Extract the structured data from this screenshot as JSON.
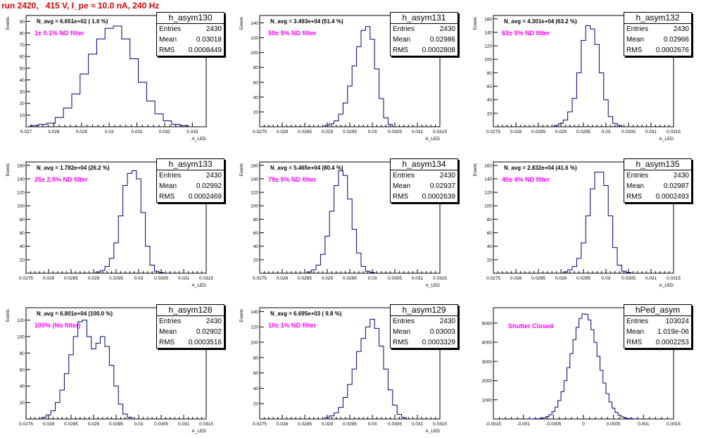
{
  "header": {
    "run_title": "run 2420,   415 V, I_pe ≈ 10.0 nA, 240 Hz"
  },
  "stats_labels": {
    "entries": "Entries",
    "mean": "Mean",
    "rms": "RMS"
  },
  "colors": {
    "histogram": "#00007f",
    "title": "#e00000",
    "annotation": "#ff00ff"
  },
  "chart_data": [
    {
      "type": "bar",
      "name": "h_asym130",
      "entries": "2430",
      "mean": "0.03018",
      "rms": "0.0008449",
      "navg": "N_avg = 6.651e+02 ( 1.0 %)",
      "filter": "1± 0.1% ND filter",
      "ylabel": "Events",
      "xlabel": "A_LED",
      "xlim": [
        0.027,
        0.0335
      ],
      "ylim": [
        0,
        95
      ],
      "xticks": [
        0.027,
        0.028,
        0.029,
        0.03,
        0.031,
        0.032,
        0.033
      ],
      "xtick_labels": [
        "0.027",
        "0.028",
        "0.029",
        "0.03",
        "0.031",
        "0.032",
        "0.033"
      ],
      "yticks": [
        10,
        20,
        30,
        40,
        50,
        60,
        70,
        80,
        90
      ],
      "yticks_labels": [
        "10",
        "20",
        "30",
        "40",
        "50",
        "60",
        "70",
        "80",
        "90"
      ],
      "hist": {
        "bins": [
          0.0273,
          0.0276,
          0.0279,
          0.0282,
          0.0285,
          0.0288,
          0.0291,
          0.0294,
          0.0297,
          0.03,
          0.0303,
          0.0306,
          0.0309,
          0.0312,
          0.0315,
          0.0318,
          0.0321,
          0.0324,
          0.0327
        ],
        "counts": [
          1,
          2,
          3,
          8,
          16,
          28,
          45,
          62,
          75,
          84,
          86,
          75,
          58,
          38,
          22,
          11,
          5,
          2,
          1
        ]
      }
    },
    {
      "type": "bar",
      "name": "h_asym131",
      "entries": "2430",
      "mean": "0.02986",
      "rms": "0.0002808",
      "navg": "N_avg = 3.493e+04 (51.4 %)",
      "filter": "50± 5% ND filter",
      "ylabel": "Events",
      "xlabel": "A_LED",
      "xlim": [
        0.0275,
        0.0315
      ],
      "ylim": [
        0,
        150
      ],
      "xticks": [
        0.0275,
        0.028,
        0.0285,
        0.029,
        0.0295,
        0.03,
        0.0305,
        0.031,
        0.0315
      ],
      "xtick_labels": [
        "0.0275",
        "0.028",
        "0.0285",
        "0.029",
        "0.0295",
        "0.03",
        "0.0305",
        "0.031",
        "0.0315"
      ],
      "yticks": [
        20,
        40,
        60,
        80,
        100,
        120,
        140
      ],
      "yticks_labels": [
        "20",
        "40",
        "60",
        "80",
        "100",
        "120",
        "140"
      ],
      "hist": {
        "bins": [
          0.029,
          0.0291,
          0.0292,
          0.0293,
          0.0294,
          0.0295,
          0.0296,
          0.0297,
          0.0298,
          0.0299,
          0.03,
          0.0301,
          0.0302,
          0.0303,
          0.0304
        ],
        "counts": [
          2,
          4,
          8,
          17,
          32,
          55,
          82,
          108,
          130,
          135,
          118,
          78,
          38,
          12,
          3
        ]
      }
    },
    {
      "type": "bar",
      "name": "h_asym132",
      "entries": "2430",
      "mean": "0.02966",
      "rms": "0.0002676",
      "navg": "N_avg = 4.301e+04 (63.2 %)",
      "filter": "63± 5% ND filter",
      "ylabel": "Events",
      "xlabel": "A_LED",
      "xlim": [
        0.0275,
        0.0315
      ],
      "ylim": [
        0,
        165
      ],
      "xticks": [
        0.0275,
        0.028,
        0.0285,
        0.029,
        0.0295,
        0.03,
        0.0305,
        0.031,
        0.0315
      ],
      "xtick_labels": [
        "0.0275",
        "0.028",
        "0.0285",
        "0.029",
        "0.0295",
        "0.03",
        "0.0305",
        "0.031",
        "0.0315"
      ],
      "yticks": [
        20,
        40,
        60,
        80,
        100,
        120,
        140,
        160
      ],
      "yticks_labels": [
        "20",
        "40",
        "60",
        "80",
        "100",
        "120",
        "140",
        "160"
      ],
      "hist": {
        "bins": [
          0.0289,
          0.029,
          0.0291,
          0.0292,
          0.0293,
          0.0294,
          0.0295,
          0.0296,
          0.0297,
          0.0298,
          0.0299,
          0.03,
          0.0301,
          0.0302,
          0.0303
        ],
        "counts": [
          2,
          5,
          10,
          22,
          42,
          80,
          128,
          150,
          145,
          122,
          80,
          40,
          15,
          5,
          2
        ]
      }
    },
    {
      "type": "bar",
      "name": "h_asym133",
      "entries": "2430",
      "mean": "0.02992",
      "rms": "0.0002469",
      "navg": "N_avg = 1.782e+04 (26.2 %)",
      "filter": "25± 2.5% ND filter",
      "ylabel": "Events",
      "xlabel": "A_LED",
      "xlim": [
        0.0275,
        0.0315
      ],
      "ylim": [
        0,
        165
      ],
      "xticks": [
        0.0275,
        0.028,
        0.0285,
        0.029,
        0.0295,
        0.03,
        0.0305,
        0.031,
        0.0315
      ],
      "xtick_labels": [
        "0.0275",
        "0.028",
        "0.0285",
        "0.029",
        "0.0295",
        "0.03",
        "0.0305",
        "0.031",
        "0.0315"
      ],
      "yticks": [
        20,
        40,
        60,
        80,
        100,
        120,
        140,
        160
      ],
      "yticks_labels": [
        "20",
        "40",
        "60",
        "80",
        "100",
        "120",
        "140",
        "160"
      ],
      "hist": {
        "bins": [
          0.0291,
          0.0292,
          0.0293,
          0.0294,
          0.0295,
          0.0296,
          0.0297,
          0.0298,
          0.0299,
          0.03,
          0.0301,
          0.0302,
          0.0303,
          0.0304,
          0.0305
        ],
        "counts": [
          2,
          4,
          10,
          22,
          45,
          85,
          130,
          148,
          152,
          140,
          90,
          40,
          12,
          3,
          1
        ]
      }
    },
    {
      "type": "bar",
      "name": "h_asym134",
      "entries": "2430",
      "mean": "0.02937",
      "rms": "0.0002639",
      "navg": "N_avg = 5.465e+04 (80.4 %)",
      "filter": "79± 5% ND filter",
      "ylabel": "Events",
      "xlabel": "A_LED",
      "xlim": [
        0.0275,
        0.0315
      ],
      "ylim": [
        0,
        165
      ],
      "xticks": [
        0.0275,
        0.028,
        0.0285,
        0.029,
        0.0295,
        0.03,
        0.0305,
        0.031,
        0.0315
      ],
      "xtick_labels": [
        "0.0275",
        "0.028",
        "0.0285",
        "0.029",
        "0.0295",
        "0.03",
        "0.0305",
        "0.031",
        "0.0315"
      ],
      "yticks": [
        20,
        40,
        60,
        80,
        100,
        120,
        140,
        160
      ],
      "yticks_labels": [
        "20",
        "40",
        "60",
        "80",
        "100",
        "120",
        "140",
        "160"
      ],
      "hist": {
        "bins": [
          0.0286,
          0.0287,
          0.0288,
          0.0289,
          0.029,
          0.0291,
          0.0292,
          0.0293,
          0.0294,
          0.0295,
          0.0296,
          0.0297,
          0.0298,
          0.0299,
          0.03
        ],
        "counts": [
          2,
          5,
          12,
          28,
          55,
          92,
          130,
          152,
          145,
          110,
          65,
          30,
          10,
          3,
          1
        ]
      }
    },
    {
      "type": "bar",
      "name": "h_asym135",
      "entries": "2430",
      "mean": "0.02987",
      "rms": "0.0002493",
      "navg": "N_avg = 2.832e+04 (41.6 %)",
      "filter": "40± 4% ND filter",
      "ylabel": "Events",
      "xlabel": "A_LED",
      "xlim": [
        0.0275,
        0.0315
      ],
      "ylim": [
        0,
        165
      ],
      "xticks": [
        0.0275,
        0.028,
        0.0285,
        0.029,
        0.0295,
        0.03,
        0.0305,
        0.031,
        0.0315
      ],
      "xtick_labels": [
        "0.0275",
        "0.028",
        "0.0285",
        "0.029",
        "0.0295",
        "0.03",
        "0.0305",
        "0.031",
        "0.0315"
      ],
      "yticks": [
        20,
        40,
        60,
        80,
        100,
        120,
        140,
        160
      ],
      "yticks_labels": [
        "20",
        "40",
        "60",
        "80",
        "100",
        "120",
        "140",
        "160"
      ],
      "hist": {
        "bins": [
          0.0291,
          0.0292,
          0.0293,
          0.0294,
          0.0295,
          0.0296,
          0.0297,
          0.0298,
          0.0299,
          0.03,
          0.0301,
          0.0302,
          0.0303,
          0.0304,
          0.0305
        ],
        "counts": [
          2,
          5,
          10,
          22,
          45,
          85,
          125,
          150,
          150,
          130,
          85,
          38,
          12,
          3,
          1
        ]
      }
    },
    {
      "type": "bar",
      "name": "h_asym128",
      "entries": "2430",
      "mean": "0.02902",
      "rms": "0.0003516",
      "navg": "N_avg = 6.801e+04 (100.0 %)",
      "filter": "100% (No filter)",
      "ylabel": "Events",
      "xlabel": "A_LED",
      "xlim": [
        0.0275,
        0.0315
      ],
      "ylim": [
        0,
        135
      ],
      "xticks": [
        0.0275,
        0.028,
        0.0285,
        0.029,
        0.0295,
        0.03,
        0.0305,
        0.031,
        0.0315
      ],
      "xtick_labels": [
        "0.0275",
        "0.028",
        "0.0285",
        "0.029",
        "0.0295",
        "0.03",
        "0.0305",
        "0.031",
        "0.0315"
      ],
      "yticks": [
        20,
        40,
        60,
        80,
        100,
        120
      ],
      "yticks_labels": [
        "20",
        "40",
        "60",
        "80",
        "100",
        "120"
      ],
      "hist": {
        "bins": [
          0.0279,
          0.028,
          0.0281,
          0.0282,
          0.0283,
          0.0284,
          0.0285,
          0.0286,
          0.0287,
          0.0288,
          0.0289,
          0.029,
          0.0291,
          0.0292,
          0.0293,
          0.0294,
          0.0295,
          0.0296,
          0.0297,
          0.0298
        ],
        "counts": [
          2,
          5,
          10,
          20,
          35,
          55,
          78,
          100,
          118,
          120,
          100,
          85,
          92,
          100,
          88,
          65,
          40,
          18,
          6,
          2
        ]
      }
    },
    {
      "type": "bar",
      "name": "h_asym129",
      "entries": "2430",
      "mean": "0.03003",
      "rms": "0.0003329",
      "navg": "N_avg = 6.695e+03 ( 9.8 %)",
      "filter": "10± 1% ND filter",
      "ylabel": "Events",
      "xlabel": "A_LED",
      "xlim": [
        0.0275,
        0.0315
      ],
      "ylim": [
        0,
        145
      ],
      "xticks": [
        0.0275,
        0.028,
        0.0285,
        0.029,
        0.0295,
        0.03,
        0.0305,
        0.031,
        0.0315
      ],
      "xtick_labels": [
        "0.0275",
        "0.028",
        "0.0285",
        "0.029",
        "0.0295",
        "0.03",
        "0.0305",
        "0.031",
        "0.0315"
      ],
      "yticks": [
        20,
        40,
        60,
        80,
        100,
        120,
        140
      ],
      "yticks_labels": [
        "20",
        "40",
        "60",
        "80",
        "100",
        "120",
        "140"
      ],
      "hist": {
        "bins": [
          0.029,
          0.0291,
          0.0292,
          0.0293,
          0.0294,
          0.0295,
          0.0296,
          0.0297,
          0.0298,
          0.0299,
          0.03,
          0.0301,
          0.0302,
          0.0303,
          0.0304,
          0.0305,
          0.0306,
          0.0307
        ],
        "counts": [
          2,
          4,
          8,
          15,
          28,
          45,
          65,
          88,
          105,
          120,
          130,
          118,
          95,
          65,
          38,
          18,
          6,
          2
        ]
      }
    },
    {
      "type": "bar",
      "name": "hPed_asym",
      "entries": "103024",
      "mean": "1.019e-06",
      "rms": "0.0002253",
      "navg": "",
      "filter": "Shutter Closed",
      "ylabel": "",
      "xlabel": "",
      "xlim": [
        -0.0015,
        0.0015
      ],
      "ylim": [
        0,
        5800
      ],
      "xticks": [
        -0.0015,
        -0.001,
        -0.0005,
        0,
        0.0005,
        0.001,
        0.0015
      ],
      "xtick_labels": [
        "-0.0015",
        "-0.001",
        "-0.0005",
        "0",
        "0.0005",
        "0.001",
        "0.0015"
      ],
      "yticks": [
        1000,
        2000,
        3000,
        4000,
        5000
      ],
      "yticks_labels": [
        "1000",
        "2000",
        "3000",
        "4000",
        "5000"
      ],
      "hist": {
        "gauss": {
          "mean": 2e-05,
          "sigma": 0.000225,
          "peak": 5500,
          "from": -0.0009,
          "to": 0.0009,
          "step": 5e-05
        }
      }
    }
  ]
}
